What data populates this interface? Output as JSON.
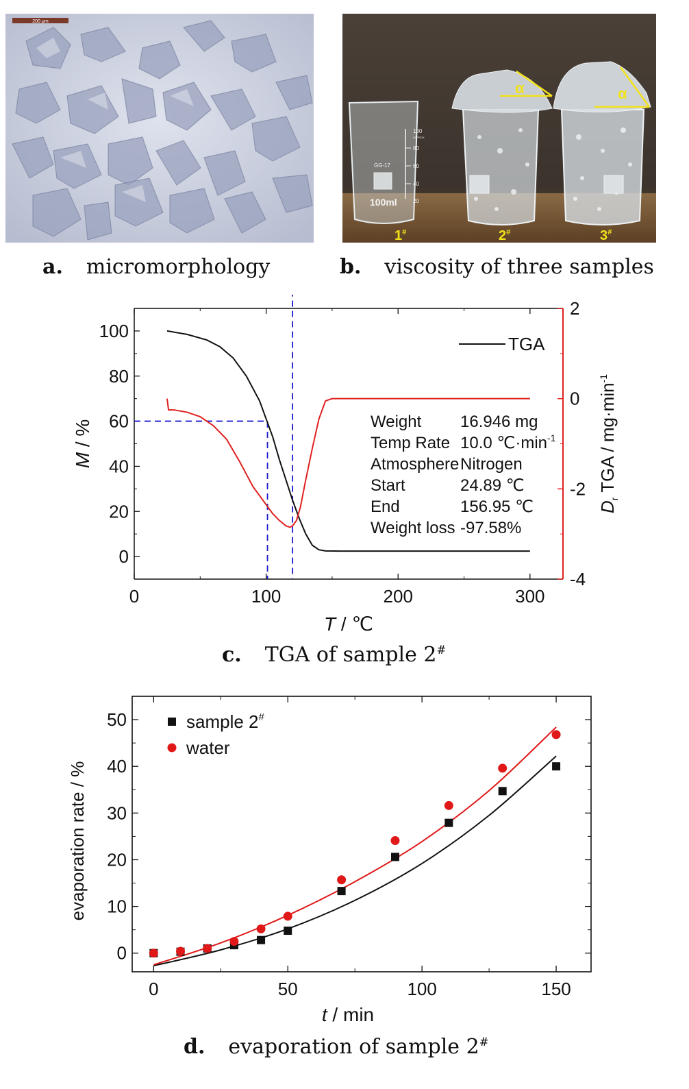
{
  "panel_a": {
    "scale_bar_label": "200 μm",
    "caption_letter": "a.",
    "caption_text": "micromorphology"
  },
  "panel_b": {
    "beaker_labels": [
      "1",
      "2",
      "3"
    ],
    "label_superscript": "#",
    "angle_label": "α",
    "beaker_markings": [
      "100",
      "APPROX",
      "80",
      "60",
      "40",
      "20",
      "100ml",
      "GG-17"
    ],
    "caption_letter": "b.",
    "caption_text": "viscosity of three samples"
  },
  "panel_c": {
    "caption_letter": "c.",
    "caption_text": "TGA of sample 2",
    "caption_sup": "#",
    "legend": "TGA",
    "info_rows": [
      {
        "label": "Weight",
        "value": "16.946 mg"
      },
      {
        "label": "Temp Rate",
        "value": "10.0 ℃·min",
        "sup": "-1"
      },
      {
        "label": "Atmosphere",
        "value": "Nitrogen"
      },
      {
        "label": "Start",
        "value": "24.89 ℃"
      },
      {
        "label": "End",
        "value": "156.95 ℃"
      },
      {
        "label": "Weight loss",
        "value": "-97.58%"
      }
    ]
  },
  "panel_d": {
    "caption_letter": "d.",
    "caption_text": "evaporation of sample 2",
    "caption_sup": "#"
  },
  "chart_data": [
    {
      "type": "line",
      "title": "TGA of sample 2#",
      "xlabel": "T / ℃",
      "ylabel_left": "M / %",
      "ylabel_right": "Dr TGA / mg·min-1",
      "xlim": [
        0,
        325
      ],
      "ylim_left": [
        -10,
        110
      ],
      "ylim_right": [
        -4,
        2
      ],
      "x_ticks": [
        0,
        100,
        200,
        300
      ],
      "y_ticks_left": [
        0,
        20,
        40,
        60,
        80,
        100
      ],
      "y_ticks_right": [
        -4,
        -2,
        0,
        2
      ],
      "colors": {
        "tga": "#111111",
        "dtga": "#e02020",
        "guides": "#1a1acc"
      },
      "series": [
        {
          "name": "TGA",
          "axis": "left",
          "x": [
            24.9,
            40,
            55,
            65,
            75,
            85,
            95,
            100,
            105,
            110,
            115,
            120,
            125,
            130,
            135,
            140,
            145,
            157,
            300
          ],
          "y": [
            100,
            98.5,
            96,
            93,
            88,
            80,
            69,
            61,
            53,
            43,
            34,
            25,
            17,
            10,
            5,
            3,
            2.5,
            2.4,
            2.4
          ]
        },
        {
          "axis": "right",
          "x": [
            24.9,
            26,
            30,
            40,
            50,
            60,
            70,
            80,
            90,
            95,
            100,
            105,
            110,
            115,
            118,
            120,
            123,
            126,
            130,
            135,
            140,
            145,
            150,
            200,
            300
          ],
          "y": [
            0,
            -0.25,
            -0.25,
            -0.3,
            -0.4,
            -0.6,
            -0.9,
            -1.4,
            -1.95,
            -2.15,
            -2.35,
            -2.55,
            -2.7,
            -2.82,
            -2.85,
            -2.82,
            -2.7,
            -2.4,
            -1.8,
            -1.1,
            -0.45,
            -0.05,
            0,
            0,
            0
          ]
        }
      ],
      "guides": [
        {
          "x": 101,
          "y": 60
        },
        {
          "x": 120,
          "y": 2.4
        }
      ]
    },
    {
      "type": "scatter",
      "xlabel": "t / min",
      "ylabel": "evaporation rate / %",
      "xlim": [
        -8,
        163
      ],
      "ylim": [
        -4,
        55
      ],
      "x_ticks": [
        0,
        50,
        100,
        150
      ],
      "y_ticks": [
        0,
        10,
        20,
        30,
        40,
        50
      ],
      "series": [
        {
          "name": "sample 2#",
          "marker": "square",
          "color": "#111111",
          "x": [
            0,
            10,
            20,
            30,
            40,
            50,
            70,
            90,
            110,
            130,
            150
          ],
          "y": [
            0,
            0.3,
            1.0,
            1.7,
            2.8,
            4.8,
            13.3,
            20.6,
            27.9,
            34.7,
            40.0
          ],
          "fit": {
            "x": [
              0,
              25,
              50,
              75,
              100,
              125,
              150
            ],
            "y": [
              -2.7,
              0.7,
              5.2,
              11.3,
              19.2,
              29.5,
              42.2
            ]
          }
        },
        {
          "name": "water",
          "marker": "circle",
          "color": "#e01818",
          "x": [
            0,
            10,
            20,
            30,
            40,
            50,
            70,
            90,
            110,
            130,
            150
          ],
          "y": [
            0,
            0.4,
            1.0,
            2.5,
            5.2,
            7.9,
            15.7,
            24.1,
            31.6,
            39.6,
            46.8
          ],
          "fit": {
            "x": [
              0,
              25,
              50,
              75,
              100,
              125,
              150
            ],
            "y": [
              -2.5,
              2.2,
              8.1,
              15.3,
              23.9,
              34.8,
              48.4
            ]
          }
        }
      ],
      "legend_position": "top-left"
    }
  ]
}
